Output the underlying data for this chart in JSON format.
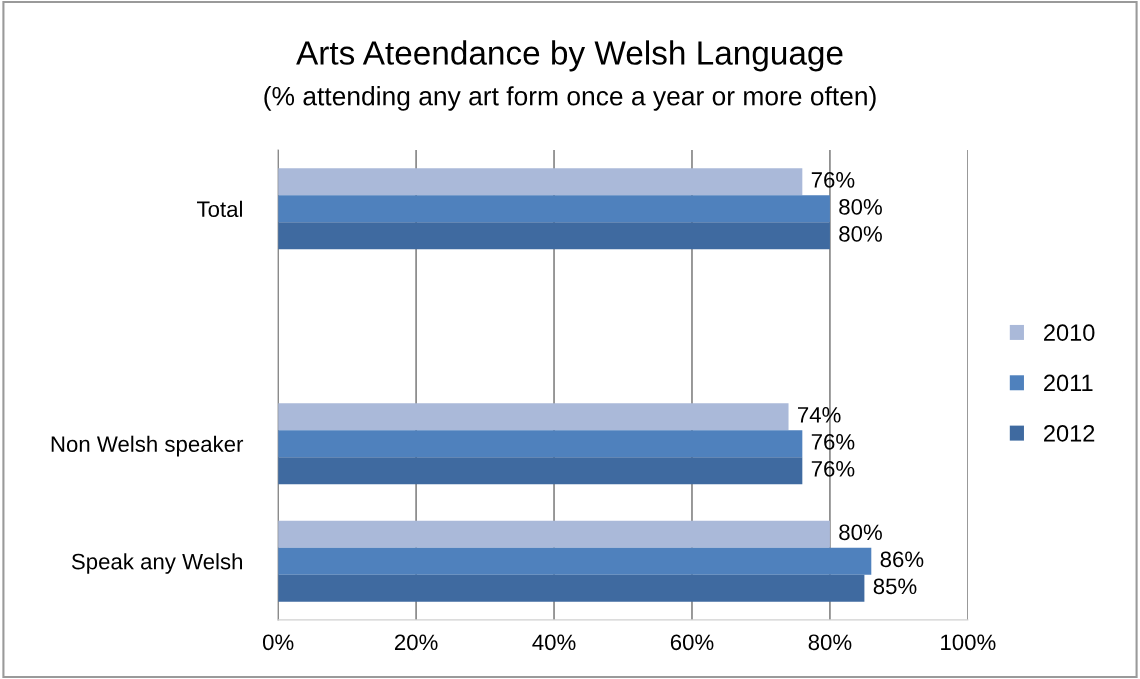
{
  "chart_data": {
    "type": "bar",
    "orientation": "horizontal",
    "title": "Arts Ateendance by Welsh Language",
    "subtitle": "(% attending any art form once a year or more often)",
    "categories": [
      "Total",
      null,
      "Non Welsh speaker",
      "Speak any Welsh"
    ],
    "series": [
      {
        "name": "2010",
        "color": "#aab9d9",
        "values": [
          76,
          null,
          74,
          80
        ],
        "value_labels": [
          "76%",
          null,
          "74%",
          "80%"
        ]
      },
      {
        "name": "2011",
        "color": "#4f81bd",
        "values": [
          80,
          null,
          76,
          86
        ],
        "value_labels": [
          "80%",
          null,
          "76%",
          "86%"
        ]
      },
      {
        "name": "2012",
        "color": "#3f6aa0",
        "values": [
          80,
          null,
          76,
          85
        ],
        "value_labels": [
          "80%",
          null,
          "76%",
          "85%"
        ]
      }
    ],
    "xlim": [
      0,
      100
    ],
    "xticks": [
      {
        "value": 0,
        "label": "0%"
      },
      {
        "value": 20,
        "label": "20%"
      },
      {
        "value": 40,
        "label": "40%"
      },
      {
        "value": 60,
        "label": "60%"
      },
      {
        "value": 80,
        "label": "80%"
      },
      {
        "value": 100,
        "label": "100%"
      }
    ],
    "grid": "x",
    "legend": "right"
  }
}
